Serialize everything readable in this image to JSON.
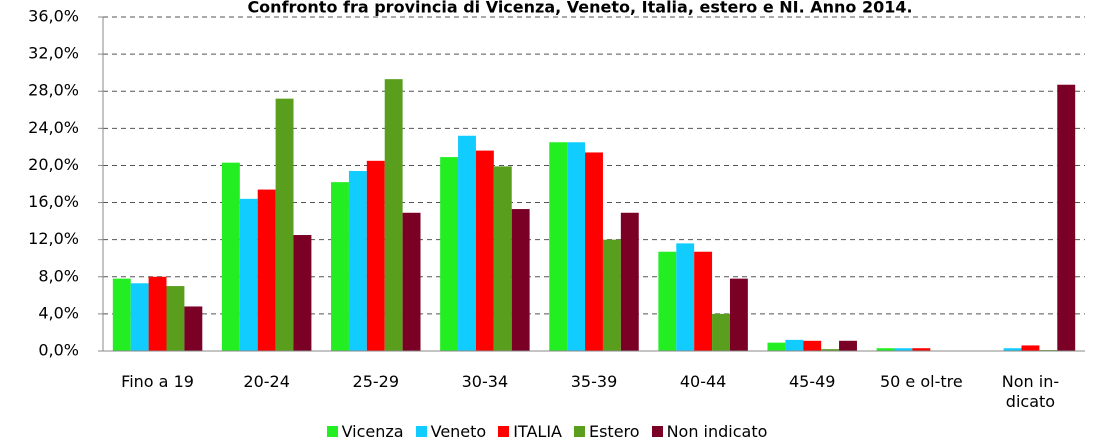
{
  "chart_data": {
    "type": "bar",
    "title": "Confronto fra provincia di Vicenza, Veneto, Italia, estero e NI. Anno 2014.",
    "categories": [
      "Fino a 19",
      "20-24",
      "25-29",
      "30-34",
      "35-39",
      "40-44",
      "45-49",
      "50 e ol-tre",
      "Non in-dicato"
    ],
    "series": [
      {
        "name": "Vicenza",
        "color": "#22ee22",
        "values": [
          7.8,
          20.3,
          18.2,
          20.9,
          22.5,
          10.7,
          0.9,
          0.3,
          0.0
        ]
      },
      {
        "name": "Veneto",
        "color": "#11ccff",
        "values": [
          7.3,
          16.4,
          19.4,
          23.2,
          22.5,
          11.6,
          1.2,
          0.3,
          0.3
        ]
      },
      {
        "name": "ITALIA",
        "color": "#ff0000",
        "values": [
          8.0,
          17.4,
          20.5,
          21.6,
          21.4,
          10.7,
          1.1,
          0.3,
          0.6
        ]
      },
      {
        "name": "Estero",
        "color": "#5a9e1e",
        "values": [
          7.0,
          27.2,
          29.3,
          19.9,
          12.0,
          4.0,
          0.2,
          0.0,
          0.1
        ]
      },
      {
        "name": "Non indicato",
        "color": "#7a0026",
        "values": [
          4.8,
          12.5,
          14.9,
          15.3,
          14.9,
          7.8,
          1.1,
          0.0,
          28.7
        ]
      }
    ],
    "ylim": [
      0,
      36
    ],
    "yticks": [
      {
        "value": 0,
        "label": "0,0%"
      },
      {
        "value": 4,
        "label": "4,0%"
      },
      {
        "value": 8,
        "label": "8,0%"
      },
      {
        "value": 12,
        "label": "12,0%"
      },
      {
        "value": 16,
        "label": "16,0%"
      },
      {
        "value": 20,
        "label": "20,0%"
      },
      {
        "value": 24,
        "label": "24,0%"
      },
      {
        "value": 28,
        "label": "28,0%"
      },
      {
        "value": 32,
        "label": "32,0%"
      },
      {
        "value": 36,
        "label": "36,0%"
      }
    ],
    "grid": true
  }
}
